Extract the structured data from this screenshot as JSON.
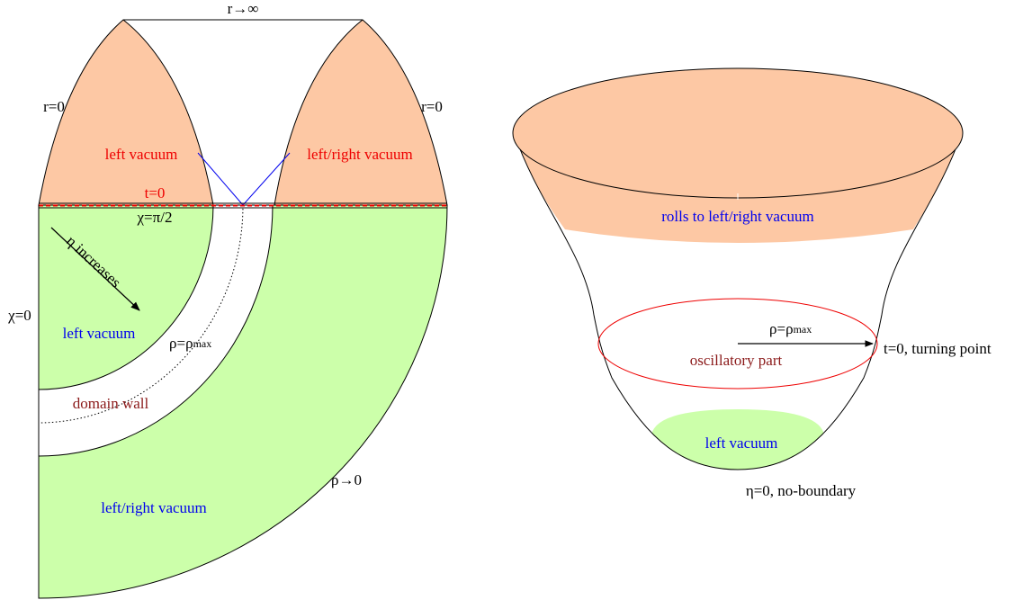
{
  "left_diagram": {
    "top_label": "r→∞",
    "r0_left": "r=0",
    "r0_right": "r=0",
    "upper_left_region": "left vacuum",
    "upper_right_region": "left/right vacuum",
    "t0": "t=0",
    "chi_half_pi": "χ=π/2",
    "eta_arrow": "η increases",
    "chi0": "χ=0",
    "inner_region": "left vacuum",
    "rho_max": {
      "main": "ρ=ρ",
      "sub": "max"
    },
    "wall": "domain wall",
    "outer_region": "left/right vacuum",
    "rho_zero": "ρ→0"
  },
  "right_diagram": {
    "upper_band": "rolls to left/right vacuum",
    "rho_max": {
      "main": "ρ=ρ",
      "sub": "max"
    },
    "middle": "oscillatory part",
    "turning": "t=0, turning point",
    "bottom_region": "left vacuum",
    "base": "η=0, no-boundary"
  }
}
